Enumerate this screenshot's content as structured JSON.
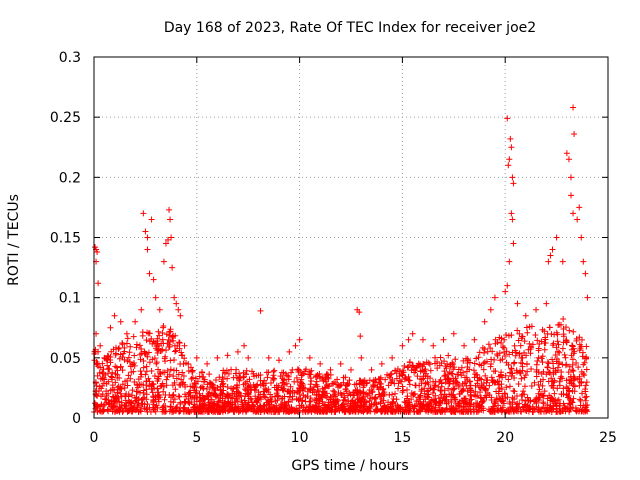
{
  "chart_data": {
    "type": "scatter",
    "title": "Day 168 of 2023, Rate Of TEC Index for receiver joe2",
    "xlabel": "GPS time / hours",
    "ylabel": "ROTI / TECUs",
    "xlim": [
      0,
      25
    ],
    "ylim": [
      0,
      0.3
    ],
    "xticks": [
      0,
      5,
      10,
      15,
      20,
      25
    ],
    "yticks": [
      0,
      0.05,
      0.1,
      0.15,
      0.2,
      0.25,
      0.3
    ],
    "xtick_labels": [
      "0",
      "5",
      "10",
      "15",
      "20",
      "25"
    ],
    "ytick_labels": [
      "0",
      "0.05",
      "0.1",
      "0.15",
      "0.2",
      "0.25",
      "0.3"
    ],
    "grid": true,
    "marker": "+",
    "color": "#ff0000",
    "series": [
      {
        "name": "ROTI",
        "points": [
          [
            0.05,
            0.142
          ],
          [
            0.1,
            0.14
          ],
          [
            0.15,
            0.138
          ],
          [
            0.1,
            0.13
          ],
          [
            0.2,
            0.112
          ],
          [
            0.1,
            0.07
          ],
          [
            0.3,
            0.06
          ],
          [
            0.5,
            0.05
          ],
          [
            0.8,
            0.075
          ],
          [
            1.0,
            0.085
          ],
          [
            1.3,
            0.08
          ],
          [
            1.6,
            0.07
          ],
          [
            2.0,
            0.08
          ],
          [
            2.3,
            0.09
          ],
          [
            2.4,
            0.17
          ],
          [
            2.5,
            0.155
          ],
          [
            2.6,
            0.15
          ],
          [
            2.6,
            0.14
          ],
          [
            2.7,
            0.12
          ],
          [
            2.8,
            0.165
          ],
          [
            2.9,
            0.115
          ],
          [
            3.0,
            0.1
          ],
          [
            3.2,
            0.09
          ],
          [
            3.4,
            0.13
          ],
          [
            3.5,
            0.145
          ],
          [
            3.6,
            0.148
          ],
          [
            3.65,
            0.173
          ],
          [
            3.7,
            0.165
          ],
          [
            3.75,
            0.15
          ],
          [
            3.8,
            0.125
          ],
          [
            3.9,
            0.1
          ],
          [
            4.0,
            0.095
          ],
          [
            4.1,
            0.09
          ],
          [
            4.2,
            0.085
          ],
          [
            4.4,
            0.06
          ],
          [
            5.0,
            0.05
          ],
          [
            5.5,
            0.045
          ],
          [
            6.0,
            0.05
          ],
          [
            6.5,
            0.052
          ],
          [
            7.0,
            0.055
          ],
          [
            7.3,
            0.06
          ],
          [
            7.5,
            0.05
          ],
          [
            8.1,
            0.089
          ],
          [
            8.5,
            0.05
          ],
          [
            9.0,
            0.048
          ],
          [
            9.5,
            0.055
          ],
          [
            9.8,
            0.06
          ],
          [
            10.0,
            0.065
          ],
          [
            10.5,
            0.05
          ],
          [
            11.0,
            0.045
          ],
          [
            11.5,
            0.04
          ],
          [
            12.0,
            0.045
          ],
          [
            12.5,
            0.04
          ],
          [
            12.8,
            0.09
          ],
          [
            12.9,
            0.088
          ],
          [
            12.95,
            0.068
          ],
          [
            13.0,
            0.05
          ],
          [
            13.5,
            0.04
          ],
          [
            14.0,
            0.045
          ],
          [
            14.5,
            0.05
          ],
          [
            15.0,
            0.06
          ],
          [
            15.3,
            0.065
          ],
          [
            15.5,
            0.07
          ],
          [
            16.0,
            0.065
          ],
          [
            16.5,
            0.06
          ],
          [
            17.0,
            0.065
          ],
          [
            17.5,
            0.07
          ],
          [
            18.0,
            0.06
          ],
          [
            18.5,
            0.065
          ],
          [
            19.0,
            0.08
          ],
          [
            19.3,
            0.09
          ],
          [
            19.5,
            0.1
          ],
          [
            20.0,
            0.105
          ],
          [
            20.1,
            0.249
          ],
          [
            20.15,
            0.21
          ],
          [
            20.2,
            0.215
          ],
          [
            20.25,
            0.232
          ],
          [
            20.3,
            0.225
          ],
          [
            20.35,
            0.2
          ],
          [
            20.4,
            0.195
          ],
          [
            20.3,
            0.17
          ],
          [
            20.35,
            0.165
          ],
          [
            20.4,
            0.145
          ],
          [
            20.2,
            0.13
          ],
          [
            20.1,
            0.11
          ],
          [
            20.6,
            0.095
          ],
          [
            21.0,
            0.085
          ],
          [
            21.5,
            0.09
          ],
          [
            22.0,
            0.095
          ],
          [
            22.1,
            0.13
          ],
          [
            22.2,
            0.135
          ],
          [
            22.3,
            0.14
          ],
          [
            22.5,
            0.15
          ],
          [
            22.8,
            0.13
          ],
          [
            23.0,
            0.22
          ],
          [
            23.1,
            0.215
          ],
          [
            23.2,
            0.2
          ],
          [
            23.3,
            0.258
          ],
          [
            23.35,
            0.236
          ],
          [
            23.2,
            0.185
          ],
          [
            23.3,
            0.17
          ],
          [
            23.5,
            0.165
          ],
          [
            23.6,
            0.175
          ],
          [
            23.7,
            0.15
          ],
          [
            23.8,
            0.13
          ],
          [
            23.9,
            0.12
          ],
          [
            24.0,
            0.1
          ]
        ]
      }
    ],
    "band": {
      "description": "dense base band of points",
      "x": [
        0,
        0.5,
        1,
        1.5,
        2,
        2.5,
        3,
        3.5,
        4,
        4.5,
        5,
        6,
        7,
        8,
        9,
        10,
        11,
        12,
        13,
        14,
        15,
        16,
        17,
        18,
        19,
        20,
        21,
        22,
        23,
        24
      ],
      "y_high": [
        0.06,
        0.055,
        0.06,
        0.065,
        0.07,
        0.075,
        0.07,
        0.08,
        0.07,
        0.05,
        0.04,
        0.04,
        0.042,
        0.038,
        0.04,
        0.042,
        0.038,
        0.035,
        0.032,
        0.035,
        0.045,
        0.05,
        0.055,
        0.05,
        0.06,
        0.07,
        0.075,
        0.08,
        0.085,
        0.06
      ],
      "y_low": [
        0.005,
        0.005,
        0.005,
        0.005,
        0.005,
        0.005,
        0.005,
        0.005,
        0.005,
        0.005,
        0.005,
        0.005,
        0.005,
        0.005,
        0.005,
        0.005,
        0.005,
        0.005,
        0.005,
        0.005,
        0.005,
        0.005,
        0.005,
        0.005,
        0.005,
        0.005,
        0.005,
        0.005,
        0.005,
        0.005
      ]
    }
  }
}
